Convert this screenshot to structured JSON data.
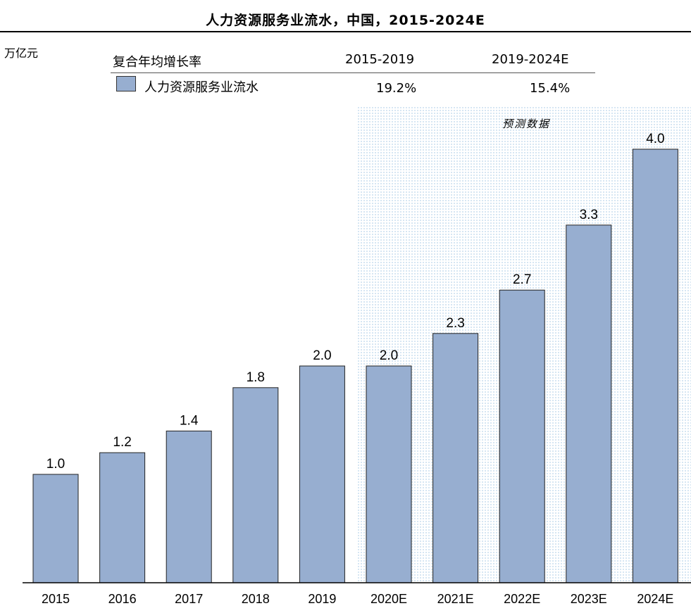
{
  "chart_data": {
    "type": "bar",
    "title": "人力资源服务业流水，中国，2015-2024E",
    "unit_label": "万亿元",
    "categories": [
      "2015",
      "2016",
      "2017",
      "2018",
      "2019",
      "2020E",
      "2021E",
      "2022E",
      "2023E",
      "2024E"
    ],
    "series": [
      {
        "name": "人力资源服务业流水",
        "values": [
          1.0,
          1.2,
          1.4,
          1.8,
          2.0,
          2.0,
          2.3,
          2.7,
          3.3,
          4.0
        ]
      }
    ],
    "value_labels": [
      "1.0",
      "1.2",
      "1.4",
      "1.8",
      "2.0",
      "2.0",
      "2.3",
      "2.7",
      "3.3",
      "4.0"
    ],
    "ylim": [
      0,
      4.0
    ],
    "grid": false,
    "bar_color": "#97aed0",
    "forecast_start_index": 5,
    "forecast_label": "预测数据",
    "forecast_bg_color": "#e4eff8"
  },
  "cagr_table": {
    "label": "复合年均增长率",
    "periods": [
      "2015-2019",
      "2019-2024E"
    ],
    "values": [
      "19.2%",
      "15.4%"
    ]
  }
}
